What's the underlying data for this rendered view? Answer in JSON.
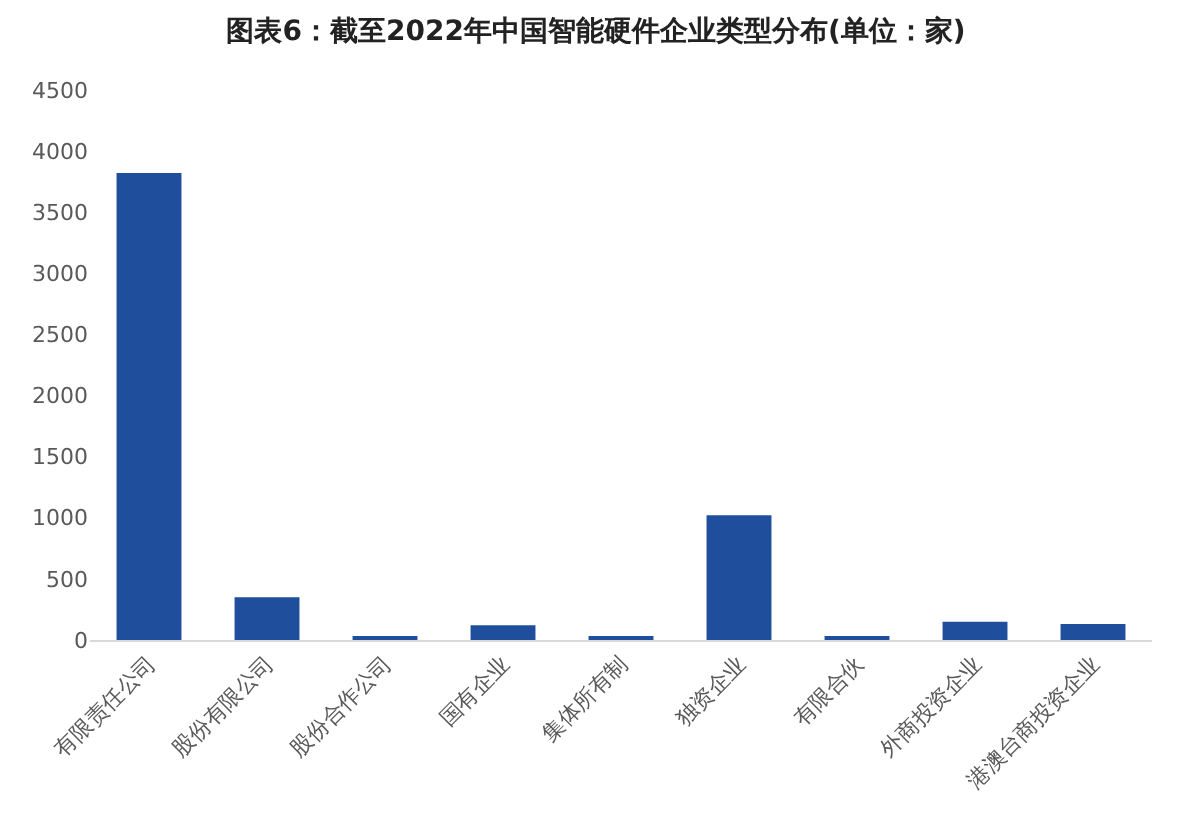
{
  "chart_data": {
    "type": "bar",
    "title": "图表6：截至2022年中国智能硬件企业类型分布(单位：家)",
    "categories": [
      "有限责任公司",
      "股份有限公司",
      "股份合作公司",
      "国有企业",
      "集体所有制",
      "独资企业",
      "有限合伙",
      "外商投资企业",
      "港澳台商投资企业"
    ],
    "values": [
      3820,
      350,
      20,
      120,
      20,
      1020,
      20,
      150,
      130
    ],
    "color": "#1f4e9c",
    "ylim": [
      0,
      4500
    ],
    "yticks": [
      0,
      500,
      1000,
      1500,
      2000,
      2500,
      3000,
      3500,
      4000,
      4500
    ],
    "grid": false
  }
}
